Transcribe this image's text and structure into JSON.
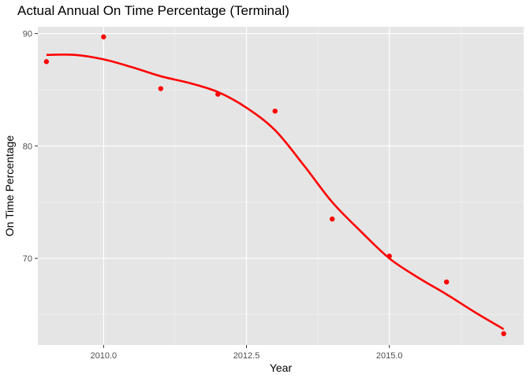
{
  "chart_data": {
    "type": "scatter",
    "title": "Actual Annual On Time Percentage (Terminal)",
    "xlabel": "Year",
    "ylabel": "On Time Percentage",
    "xlim": [
      2008.85,
      2017.35
    ],
    "ylim": [
      62.3,
      90.6
    ],
    "x_ticks": [
      2010.0,
      2012.5,
      2015.0
    ],
    "x_tick_labels": [
      "2010.0",
      "2012.5",
      "2015.0"
    ],
    "y_ticks": [
      70,
      80,
      90
    ],
    "y_tick_labels": [
      "70",
      "80",
      "90"
    ],
    "grid": true,
    "legend": "none",
    "colors": {
      "panel_background": "#e5e5e5",
      "grid_major": "#ffffff",
      "grid_minor": "#f2f2f2",
      "points": "#ff0000",
      "smooth_line": "#ff0000"
    },
    "series": [
      {
        "kind": "points",
        "x": [
          2009,
          2010,
          2011,
          2012,
          2013,
          2014,
          2015,
          2016,
          2017
        ],
        "y": [
          87.5,
          89.7,
          85.1,
          84.6,
          83.1,
          73.5,
          70.2,
          67.9,
          63.3
        ]
      },
      {
        "kind": "smooth-line",
        "x": [
          2009.0,
          2009.5,
          2010.0,
          2010.5,
          2011.0,
          2011.5,
          2012.0,
          2012.5,
          2013.0,
          2013.5,
          2014.0,
          2014.5,
          2015.0,
          2015.5,
          2016.0,
          2016.5,
          2017.0
        ],
        "y": [
          88.1,
          88.1,
          87.7,
          87.0,
          86.2,
          85.6,
          84.8,
          83.4,
          81.4,
          78.3,
          75.0,
          72.4,
          70.0,
          68.3,
          66.8,
          65.2,
          63.7
        ]
      }
    ]
  }
}
